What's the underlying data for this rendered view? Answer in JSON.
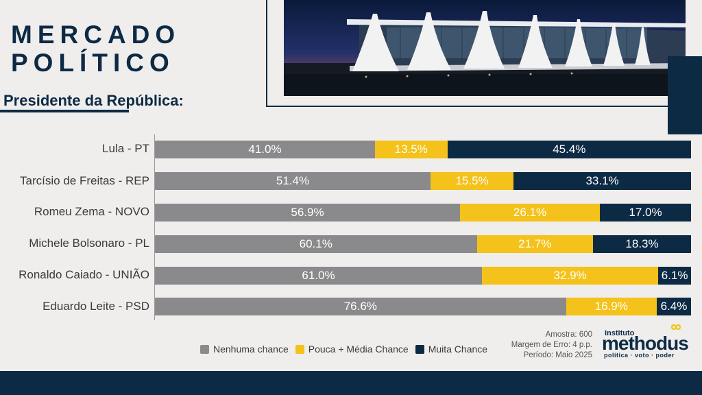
{
  "header": {
    "title_line1": "MERCADO",
    "title_line2": "POLÍTICO",
    "subtitle": "Presidente da República:"
  },
  "colors": {
    "navy": "#0d2a45",
    "gray": "#8a8a8c",
    "yellow": "#f4c21a",
    "background": "#efeeec"
  },
  "chart_data": {
    "type": "bar",
    "orientation": "horizontal",
    "stacked": true,
    "percent_stacked": true,
    "categories": [
      "Lula - PT",
      "Tarcísio de Freitas - REP",
      "Romeu Zema - NOVO",
      "Michele Bolsonaro - PL",
      "Ronaldo Caiado - UNIÃO",
      "Eduardo Leite - PSD"
    ],
    "series": [
      {
        "name": "Nenhuma chance",
        "color": "#8a8a8c",
        "values": [
          41.0,
          51.4,
          56.9,
          60.1,
          61.0,
          76.6
        ],
        "labels": [
          "41.0%",
          "51.4%",
          "56.9%",
          "60.1%",
          "61.0%",
          "76.6%"
        ]
      },
      {
        "name": "Pouca + Média Chance",
        "color": "#f4c21a",
        "values": [
          13.5,
          15.5,
          26.1,
          21.7,
          32.9,
          16.9
        ],
        "labels": [
          "13.5%",
          "15.5%",
          "26.1%",
          "21.7%",
          "32.9%",
          "16.9%"
        ]
      },
      {
        "name": "Muita Chance",
        "color": "#0d2a45",
        "values": [
          45.4,
          33.1,
          17.0,
          18.3,
          6.1,
          6.4
        ],
        "labels": [
          "45.4%",
          "33.1%",
          "17.0%",
          "18.3%",
          "6.1%",
          "6.4%"
        ]
      }
    ],
    "legend_placement": "bottom",
    "grid": false
  },
  "footer": {
    "sample": "Amostra: 600",
    "margin": "Margem de Erro: 4 p.p.",
    "period": "Período: Maio 2025"
  },
  "logo": {
    "small": "instituto",
    "brand": "methodus",
    "tagline": "política  ·  voto  ·  poder"
  }
}
